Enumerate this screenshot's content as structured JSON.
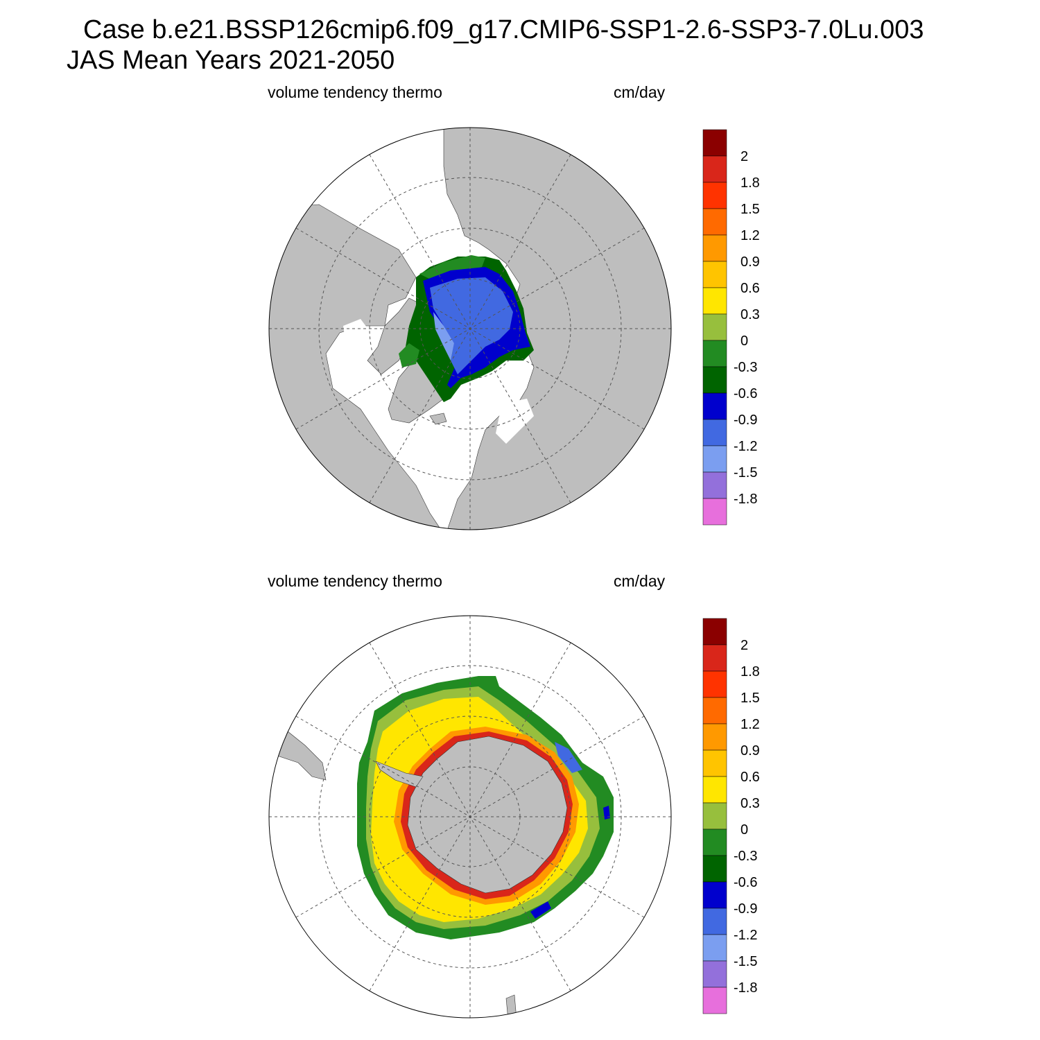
{
  "header": {
    "case_line": "Case b.e21.BSSP126cmip6.f09_g17.CMIP6-SSP1-2.6-SSP3-7.0Lu.003",
    "period_line": "JAS Mean   Years 2021-2050"
  },
  "panels": [
    {
      "id": "nh",
      "left_string": "volume tendency thermo",
      "right_string": "cm/day",
      "hemisphere": "north"
    },
    {
      "id": "sh",
      "left_string": "volume tendency thermo",
      "right_string": "cm/day",
      "hemisphere": "south"
    }
  ],
  "colorbar": {
    "labels": [
      "2",
      "1.8",
      "1.5",
      "1.2",
      "0.9",
      "0.6",
      "0.3",
      "0",
      "-0.3",
      "-0.6",
      "-0.9",
      "-1.2",
      "-1.5",
      "-1.8"
    ],
    "colors": [
      "#8b0000",
      "#d9261a",
      "#ff3300",
      "#ff6a00",
      "#ff9900",
      "#ffc400",
      "#ffe600",
      "#97bf3d",
      "#228b22",
      "#006400",
      "#0000cd",
      "#4169e1",
      "#7b9ef0",
      "#9370db",
      "#e76fdc"
    ]
  },
  "map_colors": {
    "land": "#bebebe",
    "ocean": "#ffffff",
    "grid": "#555555"
  }
}
